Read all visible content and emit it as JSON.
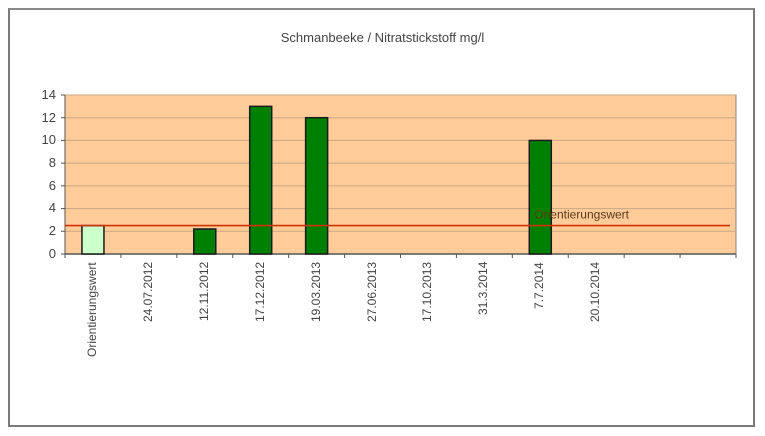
{
  "chart_data": {
    "type": "bar",
    "title": "Schmanbeeke / Nitratstickstoff  mg/l",
    "xlabel": "",
    "ylabel": "",
    "ylim": [
      0,
      14
    ],
    "yticks": [
      0,
      2,
      4,
      6,
      8,
      10,
      12,
      14
    ],
    "grid": true,
    "legend": null,
    "categories": [
      "Orientierungswert",
      "24.07.2012",
      "12.11.2012",
      "17.12.2012",
      "19.03.2013",
      "27.06.2013",
      "17.10.2013",
      "31.3.2014",
      "7.7.2014",
      "20.10.2014",
      "",
      ""
    ],
    "values": [
      2.5,
      null,
      2.2,
      13,
      12,
      null,
      null,
      null,
      10,
      null,
      null,
      null
    ],
    "bar_colors": [
      "#ccffcc",
      "#008000",
      "#008000",
      "#008000",
      "#008000",
      "#008000",
      "#008000",
      "#008000",
      "#008000",
      "#008000",
      "#008000",
      "#008000"
    ],
    "reference_line": {
      "label": "Orientierungswert",
      "value": 2.5,
      "color": "#cc3300"
    },
    "plot_background": "#ffcc99",
    "gridline_color": "#c8a882"
  },
  "yticks_labels": [
    "14",
    "12",
    "10",
    "8",
    "6",
    "4",
    "2",
    "0"
  ],
  "ref_label": "Orientierungswert"
}
